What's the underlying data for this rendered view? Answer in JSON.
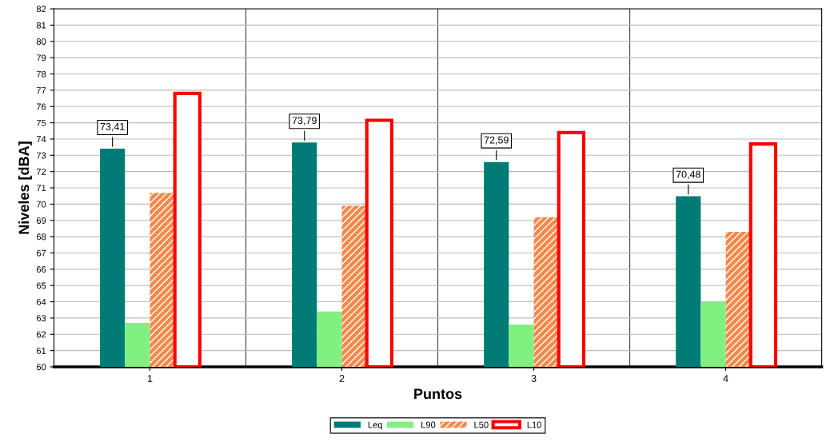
{
  "chart_data": {
    "type": "bar",
    "xlabel": "Puntos",
    "ylabel": "Niveles [dBA]",
    "categories": [
      "1",
      "2",
      "3",
      "4"
    ],
    "series": [
      {
        "name": "Leq",
        "color": "#007b76",
        "values": [
          73.41,
          73.79,
          72.59,
          70.48
        ],
        "value_labels": [
          "73,41",
          "73,79",
          "72,59",
          "70,48"
        ]
      },
      {
        "name": "L90",
        "color": "#80f080",
        "values": [
          62.7,
          63.4,
          62.6,
          64.0
        ]
      },
      {
        "name": "L50",
        "color": "#f5894a",
        "values": [
          70.7,
          69.9,
          69.2,
          68.3
        ]
      },
      {
        "name": "L10",
        "color": "#ff0000",
        "values": [
          76.8,
          75.15,
          74.4,
          73.7
        ]
      }
    ],
    "ylim": [
      60,
      82
    ],
    "yticks": [
      60,
      61,
      62,
      63,
      64,
      65,
      66,
      67,
      68,
      69,
      70,
      71,
      72,
      73,
      74,
      75,
      76,
      77,
      78,
      79,
      80,
      81,
      82
    ],
    "grid": true,
    "legend": "bottom"
  }
}
